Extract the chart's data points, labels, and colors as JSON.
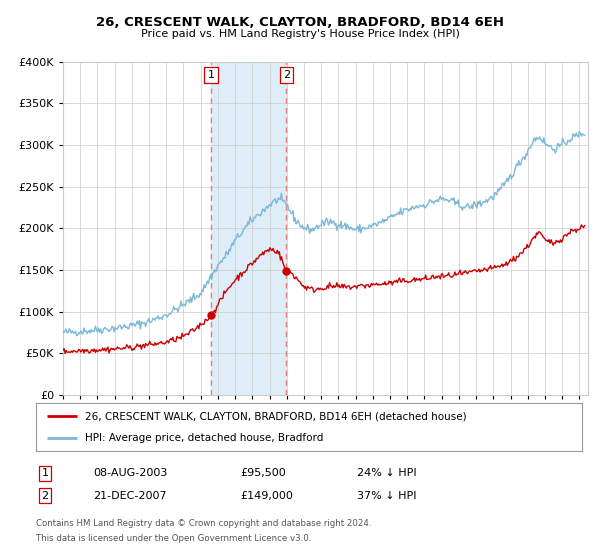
{
  "title": "26, CRESCENT WALK, CLAYTON, BRADFORD, BD14 6EH",
  "subtitle": "Price paid vs. HM Land Registry's House Price Index (HPI)",
  "legend_line1": "26, CRESCENT WALK, CLAYTON, BRADFORD, BD14 6EH (detached house)",
  "legend_line2": "HPI: Average price, detached house, Bradford",
  "transaction1_label": "1",
  "transaction1_date": "08-AUG-2003",
  "transaction1_price": "£95,500",
  "transaction1_hpi": "24% ↓ HPI",
  "transaction2_label": "2",
  "transaction2_date": "21-DEC-2007",
  "transaction2_price": "£149,000",
  "transaction2_hpi": "37% ↓ HPI",
  "footer1": "Contains HM Land Registry data © Crown copyright and database right 2024.",
  "footer2": "This data is licensed under the Open Government Licence v3.0.",
  "hpi_color": "#7ab8d9",
  "price_color": "#cc0000",
  "marker_color": "#cc0000",
  "shade_color": "#deedf8",
  "vline_color": "#e88080",
  "marker1_date_num": 2003.6,
  "marker1_value": 95500,
  "marker2_date_num": 2007.97,
  "marker2_value": 149000,
  "ylim": [
    0,
    400000
  ],
  "xlim_start": 1995.0,
  "xlim_end": 2025.5
}
